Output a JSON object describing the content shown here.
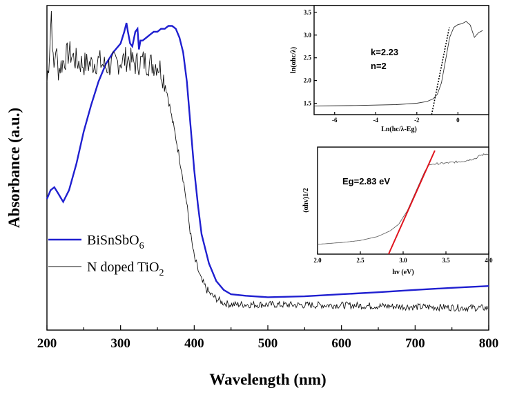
{
  "chart_data": [
    {
      "type": "line",
      "xlabel": "Wavelength (nm)",
      "ylabel": "Absorbance (a.u.)",
      "xlim": [
        200,
        800
      ],
      "ylim": [
        0,
        1.05
      ],
      "xticks": [
        "200",
        "300",
        "400",
        "500",
        "600",
        "700",
        "800"
      ],
      "series": [
        {
          "name": "BiSnSbO6",
          "name_main": "BiSnSbO",
          "name_sub": "6",
          "color": "#1f1fd0",
          "x": [
            200,
            205,
            210,
            215,
            222,
            230,
            240,
            250,
            260,
            270,
            280,
            290,
            300,
            305,
            308,
            310,
            313,
            316,
            320,
            323,
            325,
            327,
            330,
            335,
            340,
            345,
            350,
            355,
            360,
            365,
            370,
            375,
            380,
            385,
            390,
            395,
            400,
            405,
            410,
            420,
            430,
            440,
            450,
            470,
            500,
            550,
            600,
            650,
            700,
            750,
            800
          ],
          "y": [
            0.4,
            0.43,
            0.44,
            0.42,
            0.39,
            0.43,
            0.52,
            0.63,
            0.72,
            0.8,
            0.86,
            0.9,
            0.93,
            0.97,
            1.0,
            0.97,
            0.93,
            0.92,
            0.97,
            0.98,
            0.91,
            0.94,
            0.94,
            0.95,
            0.96,
            0.97,
            0.97,
            0.98,
            0.98,
            0.99,
            0.99,
            0.98,
            0.95,
            0.9,
            0.8,
            0.65,
            0.5,
            0.38,
            0.28,
            0.18,
            0.12,
            0.09,
            0.075,
            0.07,
            0.065,
            0.068,
            0.075,
            0.082,
            0.09,
            0.097,
            0.103
          ]
        },
        {
          "name": "N doped TiO2",
          "name_main": "N doped TiO",
          "name_sub": "2",
          "color": "#111111",
          "x": [
            200,
            203,
            206,
            209,
            212,
            215,
            220,
            230,
            240,
            250,
            260,
            270,
            280,
            290,
            300,
            310,
            320,
            330,
            340,
            350,
            355,
            360,
            365,
            370,
            375,
            380,
            385,
            390,
            395,
            400,
            410,
            420,
            430,
            440,
            450,
            470,
            500,
            550,
            600,
            650,
            700,
            750,
            800
          ],
          "y": [
            0.8,
            0.88,
            1.04,
            0.82,
            0.92,
            0.84,
            0.86,
            0.9,
            0.87,
            0.86,
            0.86,
            0.87,
            0.85,
            0.86,
            0.87,
            0.88,
            0.86,
            0.87,
            0.86,
            0.86,
            0.84,
            0.8,
            0.74,
            0.67,
            0.61,
            0.54,
            0.47,
            0.38,
            0.28,
            0.2,
            0.12,
            0.08,
            0.06,
            0.045,
            0.04,
            0.04,
            0.04,
            0.038,
            0.038,
            0.035,
            0.032,
            0.03,
            0.028
          ]
        }
      ]
    },
    {
      "type": "line",
      "xlabel": "Ln(hc/λ-Eg)",
      "ylabel": "ln(αhc/λ)",
      "xlim": [
        -7,
        1.5
      ],
      "ylim": [
        1.25,
        3.65
      ],
      "xticks": [
        -6,
        -4,
        -2,
        0
      ],
      "yticks": [
        1.5,
        2.0,
        2.5,
        3.0,
        3.5
      ],
      "annotations": [
        "k=2.23",
        "n=2"
      ],
      "series": [
        {
          "name": "",
          "color": "#333333",
          "x": [
            -7,
            -5,
            -3,
            -2,
            -1.5,
            -1.2,
            -1.0,
            -0.8,
            -0.6,
            -0.4,
            -0.2,
            0.0,
            0.2,
            0.4,
            0.6,
            0.8,
            1.0,
            1.2
          ],
          "y": [
            1.44,
            1.45,
            1.47,
            1.5,
            1.54,
            1.6,
            1.7,
            1.95,
            2.45,
            2.95,
            3.17,
            3.23,
            3.25,
            3.3,
            3.22,
            2.95,
            3.05,
            3.1
          ]
        },
        {
          "name": "fit",
          "color": "#000000",
          "dashed": true,
          "x": [
            -1.28,
            -0.42
          ],
          "y": [
            1.25,
            3.17
          ]
        }
      ]
    },
    {
      "type": "line",
      "xlabel": "hv (eV)",
      "ylabel": "(αhv)1/2",
      "xlim": [
        2.0,
        4.0
      ],
      "ylim": [
        0,
        1
      ],
      "xticks": [
        "2.0",
        "2.5",
        "3.0",
        "3.5",
        "4.0"
      ],
      "annotations": [
        "Eg=2.83 eV"
      ],
      "series": [
        {
          "name": "",
          "color": "#555555",
          "x": [
            2.0,
            2.3,
            2.5,
            2.7,
            2.85,
            2.95,
            3.05,
            3.15,
            3.25,
            3.3,
            3.35,
            3.5,
            3.7,
            3.85,
            3.9,
            4.0
          ],
          "y": [
            0.03,
            0.05,
            0.07,
            0.11,
            0.17,
            0.24,
            0.38,
            0.58,
            0.78,
            0.85,
            0.86,
            0.87,
            0.89,
            0.92,
            0.95,
            0.97
          ]
        },
        {
          "name": "fit",
          "color": "#e0141e",
          "x": [
            2.83,
            3.37
          ],
          "y": [
            -0.1,
            1.0
          ]
        }
      ]
    }
  ]
}
